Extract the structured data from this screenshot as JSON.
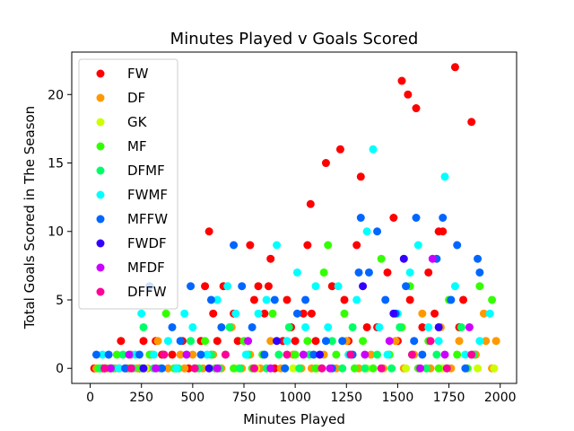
{
  "chart_data": {
    "type": "scatter",
    "title": "Minutes Played v Goals Scored",
    "xlabel": "Minutes Played",
    "ylabel": "Total Goals Scored in The Season",
    "xlim": [
      -90,
      2080
    ],
    "ylim": [
      -1.1,
      23.1
    ],
    "xticks": [
      0,
      250,
      500,
      750,
      1000,
      1250,
      1500,
      1750,
      2000
    ],
    "yticks": [
      0,
      5,
      10,
      15,
      20
    ],
    "grid": false,
    "legend_position": "top-left",
    "series": [
      {
        "name": "FW",
        "color": "#ff0000",
        "points": [
          [
            20,
            0
          ],
          [
            60,
            0
          ],
          [
            100,
            0
          ],
          [
            140,
            0
          ],
          [
            150,
            2
          ],
          [
            180,
            0
          ],
          [
            240,
            0
          ],
          [
            260,
            2
          ],
          [
            320,
            2
          ],
          [
            350,
            1
          ],
          [
            400,
            1
          ],
          [
            420,
            0
          ],
          [
            450,
            2
          ],
          [
            480,
            0
          ],
          [
            540,
            2
          ],
          [
            560,
            6
          ],
          [
            580,
            10
          ],
          [
            600,
            4
          ],
          [
            620,
            2
          ],
          [
            650,
            6
          ],
          [
            700,
            4
          ],
          [
            720,
            2
          ],
          [
            780,
            9
          ],
          [
            800,
            5
          ],
          [
            820,
            6
          ],
          [
            850,
            4
          ],
          [
            870,
            6
          ],
          [
            880,
            8
          ],
          [
            900,
            0
          ],
          [
            940,
            2
          ],
          [
            960,
            5
          ],
          [
            980,
            3
          ],
          [
            1000,
            2
          ],
          [
            1040,
            4
          ],
          [
            1060,
            9
          ],
          [
            1075,
            12
          ],
          [
            1080,
            4
          ],
          [
            1100,
            2
          ],
          [
            1150,
            15
          ],
          [
            1180,
            6
          ],
          [
            1220,
            16
          ],
          [
            1240,
            5
          ],
          [
            1260,
            2
          ],
          [
            1300,
            9
          ],
          [
            1320,
            14
          ],
          [
            1350,
            3
          ],
          [
            1400,
            3
          ],
          [
            1450,
            7
          ],
          [
            1480,
            11
          ],
          [
            1500,
            2
          ],
          [
            1520,
            21
          ],
          [
            1550,
            20
          ],
          [
            1560,
            5
          ],
          [
            1590,
            19
          ],
          [
            1620,
            3
          ],
          [
            1650,
            7
          ],
          [
            1680,
            4
          ],
          [
            1700,
            10
          ],
          [
            1720,
            10
          ],
          [
            1780,
            22
          ],
          [
            1800,
            3
          ],
          [
            1820,
            5
          ],
          [
            1860,
            18
          ],
          [
            1880,
            1
          ]
        ]
      },
      {
        "name": "DF",
        "color": "#ff9900",
        "points": [
          [
            30,
            0
          ],
          [
            70,
            0
          ],
          [
            120,
            0
          ],
          [
            170,
            0
          ],
          [
            200,
            1
          ],
          [
            230,
            0
          ],
          [
            280,
            0
          ],
          [
            300,
            1
          ],
          [
            330,
            2
          ],
          [
            380,
            0
          ],
          [
            440,
            1
          ],
          [
            460,
            0
          ],
          [
            500,
            1
          ],
          [
            550,
            0
          ],
          [
            600,
            1
          ],
          [
            640,
            0
          ],
          [
            690,
            3
          ],
          [
            740,
            0
          ],
          [
            780,
            1
          ],
          [
            830,
            0
          ],
          [
            880,
            2
          ],
          [
            930,
            0
          ],
          [
            990,
            1
          ],
          [
            1030,
            0
          ],
          [
            1080,
            0
          ],
          [
            1140,
            1
          ],
          [
            1200,
            0
          ],
          [
            1250,
            2
          ],
          [
            1310,
            0
          ],
          [
            1370,
            1
          ],
          [
            1430,
            0
          ],
          [
            1490,
            2
          ],
          [
            1530,
            0
          ],
          [
            1580,
            1
          ],
          [
            1620,
            4
          ],
          [
            1660,
            0
          ],
          [
            1710,
            3
          ],
          [
            1760,
            0
          ],
          [
            1800,
            2
          ],
          [
            1840,
            0
          ],
          [
            1880,
            1
          ],
          [
            1920,
            4
          ],
          [
            1930,
            2
          ],
          [
            1960,
            0
          ],
          [
            1980,
            2
          ]
        ]
      },
      {
        "name": "GK",
        "color": "#ccff00",
        "points": [
          [
            90,
            0
          ],
          [
            270,
            0
          ],
          [
            520,
            0
          ],
          [
            720,
            0
          ],
          [
            810,
            0
          ],
          [
            990,
            0
          ],
          [
            1110,
            0
          ],
          [
            1350,
            0
          ],
          [
            1540,
            0
          ],
          [
            1720,
            0
          ],
          [
            1890,
            0
          ],
          [
            1970,
            0
          ]
        ]
      },
      {
        "name": "MF",
        "color": "#33ff00",
        "points": [
          [
            40,
            0
          ],
          [
            80,
            0
          ],
          [
            130,
            1
          ],
          [
            190,
            0
          ],
          [
            250,
            0
          ],
          [
            290,
            1
          ],
          [
            340,
            0
          ],
          [
            370,
            4
          ],
          [
            410,
            0
          ],
          [
            470,
            1
          ],
          [
            510,
            0
          ],
          [
            560,
            2
          ],
          [
            610,
            0
          ],
          [
            660,
            1
          ],
          [
            700,
            0
          ],
          [
            750,
            2
          ],
          [
            790,
            0
          ],
          [
            840,
            1
          ],
          [
            890,
            4
          ],
          [
            950,
            0
          ],
          [
            1000,
            1
          ],
          [
            1060,
            2
          ],
          [
            1100,
            0
          ],
          [
            1140,
            7
          ],
          [
            1160,
            9
          ],
          [
            1200,
            1
          ],
          [
            1240,
            4
          ],
          [
            1290,
            0
          ],
          [
            1330,
            2
          ],
          [
            1380,
            0
          ],
          [
            1420,
            8
          ],
          [
            1460,
            1
          ],
          [
            1520,
            3
          ],
          [
            1560,
            6
          ],
          [
            1600,
            0
          ],
          [
            1650,
            2
          ],
          [
            1700,
            0
          ],
          [
            1750,
            5
          ],
          [
            1790,
            1
          ],
          [
            1840,
            0
          ],
          [
            1900,
            6
          ],
          [
            1960,
            5
          ]
        ]
      },
      {
        "name": "DFMF",
        "color": "#00ff66",
        "points": [
          [
            50,
            0
          ],
          [
            110,
            0
          ],
          [
            160,
            1
          ],
          [
            210,
            0
          ],
          [
            260,
            3
          ],
          [
            310,
            0
          ],
          [
            360,
            1
          ],
          [
            430,
            0
          ],
          [
            490,
            2
          ],
          [
            530,
            0
          ],
          [
            590,
            1
          ],
          [
            630,
            0
          ],
          [
            680,
            3
          ],
          [
            730,
            0
          ],
          [
            770,
            1
          ],
          [
            860,
            0
          ],
          [
            920,
            1
          ],
          [
            970,
            3
          ],
          [
            1020,
            0
          ],
          [
            1070,
            1
          ],
          [
            1130,
            0
          ],
          [
            1180,
            2
          ],
          [
            1230,
            0
          ],
          [
            1280,
            3
          ],
          [
            1340,
            0
          ],
          [
            1400,
            1
          ],
          [
            1470,
            0
          ],
          [
            1510,
            3
          ],
          [
            1570,
            1
          ],
          [
            1640,
            0
          ],
          [
            1690,
            1
          ],
          [
            1740,
            0
          ],
          [
            1810,
            3
          ],
          [
            1870,
            1
          ]
        ]
      },
      {
        "name": "FWMF",
        "color": "#00ffff",
        "points": [
          [
            60,
            1
          ],
          [
            140,
            0
          ],
          [
            220,
            1
          ],
          [
            250,
            4
          ],
          [
            310,
            1
          ],
          [
            380,
            2
          ],
          [
            420,
            0
          ],
          [
            460,
            4
          ],
          [
            500,
            3
          ],
          [
            570,
            1
          ],
          [
            620,
            5
          ],
          [
            670,
            6
          ],
          [
            710,
            4
          ],
          [
            760,
            1
          ],
          [
            820,
            4
          ],
          [
            860,
            5
          ],
          [
            910,
            9
          ],
          [
            960,
            2
          ],
          [
            1010,
            7
          ],
          [
            1050,
            3
          ],
          [
            1100,
            6
          ],
          [
            1160,
            3
          ],
          [
            1210,
            6
          ],
          [
            1260,
            1
          ],
          [
            1300,
            5
          ],
          [
            1350,
            10
          ],
          [
            1380,
            16
          ],
          [
            1410,
            3
          ],
          [
            1450,
            1
          ],
          [
            1500,
            4
          ],
          [
            1560,
            7
          ],
          [
            1600,
            9
          ],
          [
            1650,
            3
          ],
          [
            1700,
            2
          ],
          [
            1730,
            14
          ],
          [
            1780,
            6
          ],
          [
            1830,
            1
          ],
          [
            1900,
            2
          ],
          [
            1950,
            4
          ]
        ]
      },
      {
        "name": "MFFW",
        "color": "#0066ff",
        "points": [
          [
            30,
            1
          ],
          [
            90,
            1
          ],
          [
            170,
            0
          ],
          [
            240,
            1
          ],
          [
            290,
            6
          ],
          [
            350,
            0
          ],
          [
            400,
            3
          ],
          [
            440,
            2
          ],
          [
            490,
            6
          ],
          [
            540,
            1
          ],
          [
            590,
            5
          ],
          [
            640,
            3
          ],
          [
            700,
            9
          ],
          [
            740,
            6
          ],
          [
            790,
            3
          ],
          [
            850,
            1
          ],
          [
            900,
            5
          ],
          [
            950,
            0
          ],
          [
            1010,
            4
          ],
          [
            1050,
            5
          ],
          [
            1090,
            1
          ],
          [
            1150,
            2
          ],
          [
            1180,
            0
          ],
          [
            1230,
            2
          ],
          [
            1280,
            1
          ],
          [
            1310,
            7
          ],
          [
            1320,
            11
          ],
          [
            1360,
            7
          ],
          [
            1400,
            10
          ],
          [
            1440,
            5
          ],
          [
            1490,
            4
          ],
          [
            1540,
            6
          ],
          [
            1580,
            2
          ],
          [
            1590,
            11
          ],
          [
            1620,
            1
          ],
          [
            1690,
            8
          ],
          [
            1720,
            11
          ],
          [
            1760,
            5
          ],
          [
            1790,
            9
          ],
          [
            1830,
            0
          ],
          [
            1890,
            8
          ],
          [
            1900,
            7
          ]
        ]
      },
      {
        "name": "FWDF",
        "color": "#3300ff",
        "points": [
          [
            260,
            0
          ],
          [
            580,
            0
          ],
          [
            910,
            2
          ],
          [
            1120,
            1
          ],
          [
            1330,
            6
          ],
          [
            1480,
            4
          ],
          [
            1530,
            8
          ],
          [
            1700,
            3
          ]
        ]
      },
      {
        "name": "MFDF",
        "color": "#cc00ff",
        "points": [
          [
            100,
            0
          ],
          [
            190,
            1
          ],
          [
            320,
            0
          ],
          [
            470,
            1
          ],
          [
            620,
            0
          ],
          [
            770,
            2
          ],
          [
            880,
            0
          ],
          [
            1040,
            1
          ],
          [
            1170,
            0
          ],
          [
            1340,
            1
          ],
          [
            1460,
            2
          ],
          [
            1610,
            0
          ],
          [
            1670,
            8
          ],
          [
            1730,
            1
          ],
          [
            1850,
            3
          ]
        ]
      },
      {
        "name": "DFFW",
        "color": "#ff0099",
        "points": [
          [
            70,
            0
          ],
          [
            200,
            0
          ],
          [
            360,
            1
          ],
          [
            510,
            0
          ],
          [
            660,
            1
          ],
          [
            800,
            0
          ],
          [
            960,
            1
          ],
          [
            1130,
            0
          ],
          [
            1270,
            1
          ],
          [
            1420,
            0
          ],
          [
            1570,
            1
          ],
          [
            1660,
            2
          ],
          [
            1740,
            0
          ],
          [
            1860,
            1
          ]
        ]
      }
    ]
  }
}
